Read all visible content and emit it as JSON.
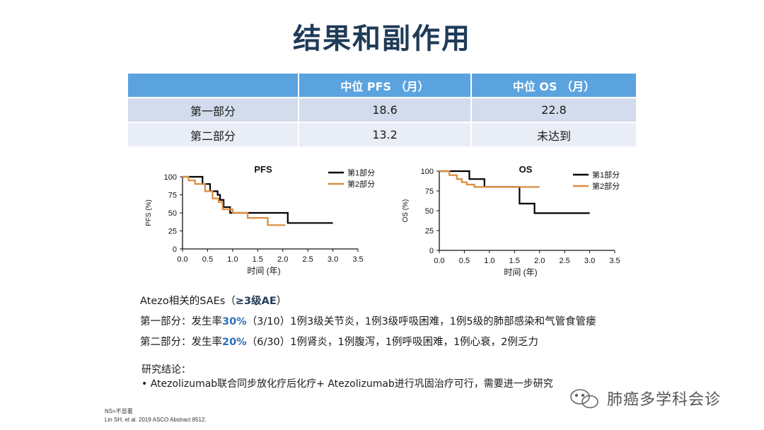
{
  "title": "结果和副作用",
  "table": {
    "headers": [
      "",
      "中位 PFS （月）",
      "中位 OS （月）"
    ],
    "rows": [
      [
        "第一部分",
        "18.6",
        "22.8"
      ],
      [
        "第二部分",
        "13.2",
        "未达到"
      ]
    ]
  },
  "chart_data": [
    {
      "type": "line",
      "title": "PFS",
      "xlabel": "时间 (年)",
      "ylabel": "PFS (%)",
      "xlim": [
        0,
        3.5
      ],
      "ylim": [
        0,
        100
      ],
      "xticks": [
        "0.0",
        "0.5",
        "1.0",
        "1.5",
        "2.0",
        "2.5",
        "3.0",
        "3.5"
      ],
      "yticks": [
        "0",
        "25",
        "50",
        "75",
        "100"
      ],
      "legend_position": "top-right",
      "series": [
        {
          "name": "第1部分",
          "color": "#000000",
          "x": [
            0,
            0.4,
            0.4,
            0.55,
            0.55,
            0.7,
            0.7,
            0.75,
            0.75,
            0.82,
            0.82,
            0.95,
            0.95,
            1.3,
            1.3,
            2.1,
            2.1,
            3.0
          ],
          "y": [
            100,
            100,
            90,
            90,
            80,
            80,
            75,
            75,
            68,
            68,
            58,
            58,
            50,
            50,
            50,
            50,
            36,
            36
          ]
        },
        {
          "name": "第2部分",
          "color": "#d98c3c",
          "x": [
            0,
            0.12,
            0.12,
            0.25,
            0.25,
            0.45,
            0.45,
            0.6,
            0.6,
            0.72,
            0.72,
            0.8,
            0.8,
            1.0,
            1.0,
            1.3,
            1.3,
            1.7,
            1.7,
            2.05
          ],
          "y": [
            100,
            100,
            95,
            95,
            90,
            90,
            80,
            80,
            70,
            70,
            65,
            65,
            55,
            55,
            50,
            50,
            43,
            43,
            33,
            33
          ]
        }
      ]
    },
    {
      "type": "line",
      "title": "OS",
      "xlabel": "时间 (年)",
      "ylabel": "OS (%)",
      "xlim": [
        0,
        3.5
      ],
      "ylim": [
        0,
        100
      ],
      "xticks": [
        "0.0",
        "0.5",
        "1.0",
        "1.5",
        "2.0",
        "2.5",
        "3.0",
        "3.5"
      ],
      "yticks": [
        "0",
        "25",
        "50",
        "75",
        "100"
      ],
      "legend_position": "top-right",
      "series": [
        {
          "name": "第1部分",
          "color": "#000000",
          "x": [
            0,
            0.6,
            0.6,
            0.9,
            0.9,
            1.6,
            1.6,
            1.9,
            1.9,
            3.0
          ],
          "y": [
            100,
            100,
            90,
            90,
            80,
            80,
            59,
            59,
            47,
            47
          ]
        },
        {
          "name": "第2部分",
          "color": "#d98c3c",
          "x": [
            0,
            0.2,
            0.2,
            0.35,
            0.35,
            0.45,
            0.45,
            0.55,
            0.55,
            0.7,
            0.7,
            2.0
          ],
          "y": [
            100,
            100,
            95,
            95,
            90,
            90,
            86,
            86,
            83,
            83,
            80,
            80
          ]
        }
      ]
    }
  ],
  "sae": {
    "heading_prefix": "Atezo相关的SAEs（",
    "heading_hl": "≥3级AE",
    "heading_suffix": "）",
    "line1_prefix": "第一部分：发生率",
    "line1_hl": "30%",
    "line1_suffix": "（3/10）1例3级关节炎，1例3级呼吸困难，1例5级的肺部感染和气管食管瘘",
    "line2_prefix": "第二部分：发生率",
    "line2_hl": "20%",
    "line2_suffix": "（6/30）1例肾炎，1例腹泻，1例呼吸困难，1例心衰，2例乏力"
  },
  "conclusion": {
    "heading": "研究结论：",
    "bullet": "•",
    "text": "Atezolizumab联合同步放化疗后化疗+ Atezolizumab进行巩固治疗可行，需要进一步研究"
  },
  "footnote": {
    "ns": "NS=不显著",
    "ref": "Lin SH, et al. 2019 ASCO Abstract 8512."
  },
  "watermark": {
    "text": "肺癌多学科会诊",
    "icon": "wechat-icon"
  }
}
